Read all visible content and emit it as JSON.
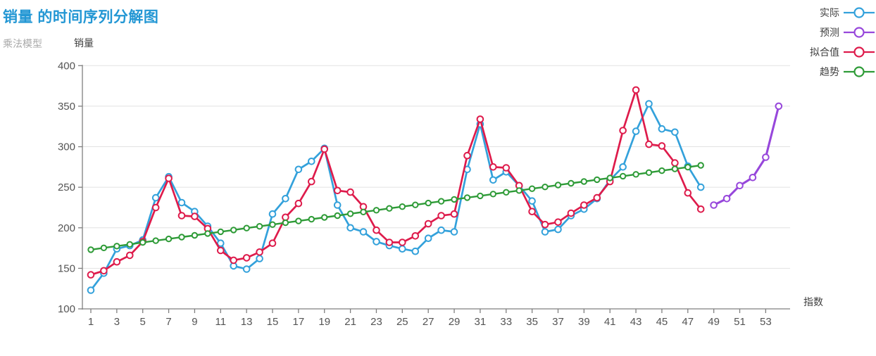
{
  "title": "销量 的时间序列分解图",
  "model_label": "乘法模型",
  "y_axis_title": "销量",
  "x_axis_title": "指数",
  "legend": [
    {
      "key": "actual",
      "label": "实际",
      "color": "#33a1db"
    },
    {
      "key": "forecast",
      "label": "预测",
      "color": "#9747db"
    },
    {
      "key": "fitted",
      "label": "拟合值",
      "color": "#de1b4b"
    },
    {
      "key": "trend",
      "label": "趋势",
      "color": "#2e9b37"
    }
  ],
  "chart_data": {
    "type": "line",
    "title": "销量 的时间序列分解图",
    "subtitle": "乘法模型",
    "xlabel": "指数",
    "ylabel": "销量",
    "xlim": [
      0,
      55
    ],
    "ylim": [
      100,
      400
    ],
    "y_ticks": [
      100,
      150,
      200,
      250,
      300,
      350,
      400
    ],
    "x_ticks": [
      1,
      3,
      5,
      7,
      9,
      11,
      13,
      15,
      17,
      19,
      21,
      23,
      25,
      27,
      29,
      31,
      33,
      35,
      37,
      39,
      41,
      43,
      45,
      47,
      49,
      51,
      53
    ],
    "grid": true,
    "legend_position": "top-right",
    "marker": "open-circle",
    "series": [
      {
        "key": "actual",
        "name": "实际",
        "color": "#33a1db",
        "x_start": 1,
        "values": [
          123,
          144,
          174,
          178,
          185,
          237,
          263,
          231,
          220,
          202,
          181,
          153,
          149,
          162,
          217,
          236,
          272,
          282,
          298,
          228,
          200,
          195,
          183,
          178,
          174,
          171,
          187,
          197,
          195,
          272,
          328,
          259,
          269,
          252,
          233,
          195,
          198,
          215,
          223,
          236,
          259,
          275,
          319,
          353,
          322,
          318,
          276,
          250
        ]
      },
      {
        "key": "fitted",
        "name": "拟合值",
        "color": "#de1b4b",
        "x_start": 1,
        "values": [
          142,
          147,
          158,
          166,
          183,
          225,
          261,
          215,
          214,
          199,
          172,
          160,
          163,
          170,
          181,
          213,
          230,
          257,
          297,
          246,
          244,
          226,
          197,
          182,
          182,
          190,
          205,
          215,
          217,
          289,
          334,
          275,
          274,
          252,
          220,
          204,
          207,
          218,
          228,
          237,
          257,
          320,
          370,
          303,
          301,
          280,
          243,
          223
        ]
      },
      {
        "key": "trend",
        "name": "趋势",
        "color": "#2e9b37",
        "x_start": 1,
        "values": [
          173,
          175.2,
          177.4,
          179.6,
          181.9,
          184.1,
          186.3,
          188.5,
          190.7,
          192.9,
          195.1,
          197.3,
          199.6,
          201.8,
          204,
          206.2,
          208.4,
          210.6,
          212.8,
          215,
          217.3,
          219.5,
          221.7,
          223.9,
          226.1,
          228.3,
          230.5,
          232.7,
          235,
          237.2,
          239.4,
          241.6,
          243.8,
          246,
          248.2,
          250.4,
          252.7,
          254.9,
          257.1,
          259.3,
          261.5,
          263.7,
          265.9,
          268.1,
          270.4,
          272.6,
          274.8,
          277
        ]
      },
      {
        "key": "forecast",
        "name": "预测",
        "color": "#9747db",
        "x_start": 49,
        "values": [
          228,
          236,
          252,
          262,
          287,
          350
        ]
      }
    ]
  }
}
